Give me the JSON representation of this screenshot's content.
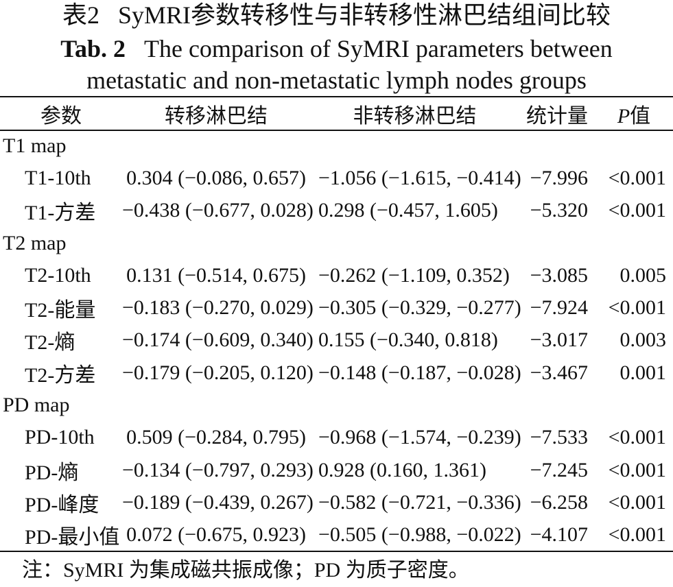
{
  "title": {
    "cn_label": "表2",
    "cn_text": "SyMRI参数转移性与非转移性淋巴结组间比较",
    "en_label": "Tab. 2",
    "en_line1": "The comparison of SyMRI parameters between",
    "en_line2": "metastatic and non-metastatic lymph nodes groups"
  },
  "table": {
    "headers": {
      "param": "参数",
      "metastatic": "转移淋巴结",
      "non_metastatic": "非转移淋巴结",
      "statistic": "统计量",
      "p_letter": "P",
      "p_suffix": "值"
    },
    "rows": [
      {
        "group": "T1 map"
      },
      {
        "param": "T1-10th",
        "metastatic": "0.304 (−0.086, 0.657)",
        "non_metastatic": "−1.056 (−1.615, −0.414)",
        "statistic": "−7.996",
        "p": "<0.001"
      },
      {
        "param": "T1-方差",
        "metastatic": "−0.438 (−0.677, 0.028)",
        "non_metastatic": "0.298 (−0.457, 1.605)",
        "statistic": "−5.320",
        "p": "<0.001"
      },
      {
        "group": "T2 map"
      },
      {
        "param": "T2-10th",
        "metastatic": "0.131 (−0.514, 0.675)",
        "non_metastatic": "−0.262 (−1.109, 0.352)",
        "statistic": "−3.085",
        "p": "0.005"
      },
      {
        "param": "T2-能量",
        "metastatic": "−0.183 (−0.270, 0.029)",
        "non_metastatic": "−0.305 (−0.329, −0.277)",
        "statistic": "−7.924",
        "p": "<0.001"
      },
      {
        "param": "T2-熵",
        "metastatic": "−0.174 (−0.609, 0.340)",
        "non_metastatic": "0.155 (−0.340, 0.818)",
        "statistic": "−3.017",
        "p": "0.003"
      },
      {
        "param": "T2-方差",
        "metastatic": "−0.179 (−0.205, 0.120)",
        "non_metastatic": "−0.148 (−0.187, −0.028)",
        "statistic": "−3.467",
        "p": "0.001"
      },
      {
        "group": "PD map"
      },
      {
        "param": "PD-10th",
        "metastatic": "0.509 (−0.284, 0.795)",
        "non_metastatic": "−0.968 (−1.574, −0.239)",
        "statistic": "−7.533",
        "p": "<0.001"
      },
      {
        "param": "PD-熵",
        "metastatic": "−0.134 (−0.797, 0.293)",
        "non_metastatic": "0.928 (0.160, 1.361)",
        "statistic": "−7.245",
        "p": "<0.001"
      },
      {
        "param": "PD-峰度",
        "metastatic": "−0.189 (−0.439, 0.267)",
        "non_metastatic": "−0.582 (−0.721, −0.336)",
        "statistic": "−6.258",
        "p": "<0.001"
      },
      {
        "param": "PD-最小值",
        "metastatic": "0.072 (−0.675, 0.923)",
        "non_metastatic": "−0.505 (−0.988, −0.022)",
        "statistic": "−4.107",
        "p": "<0.001"
      }
    ]
  },
  "note": "注：SyMRI 为集成磁共振成像；PD 为质子密度。"
}
